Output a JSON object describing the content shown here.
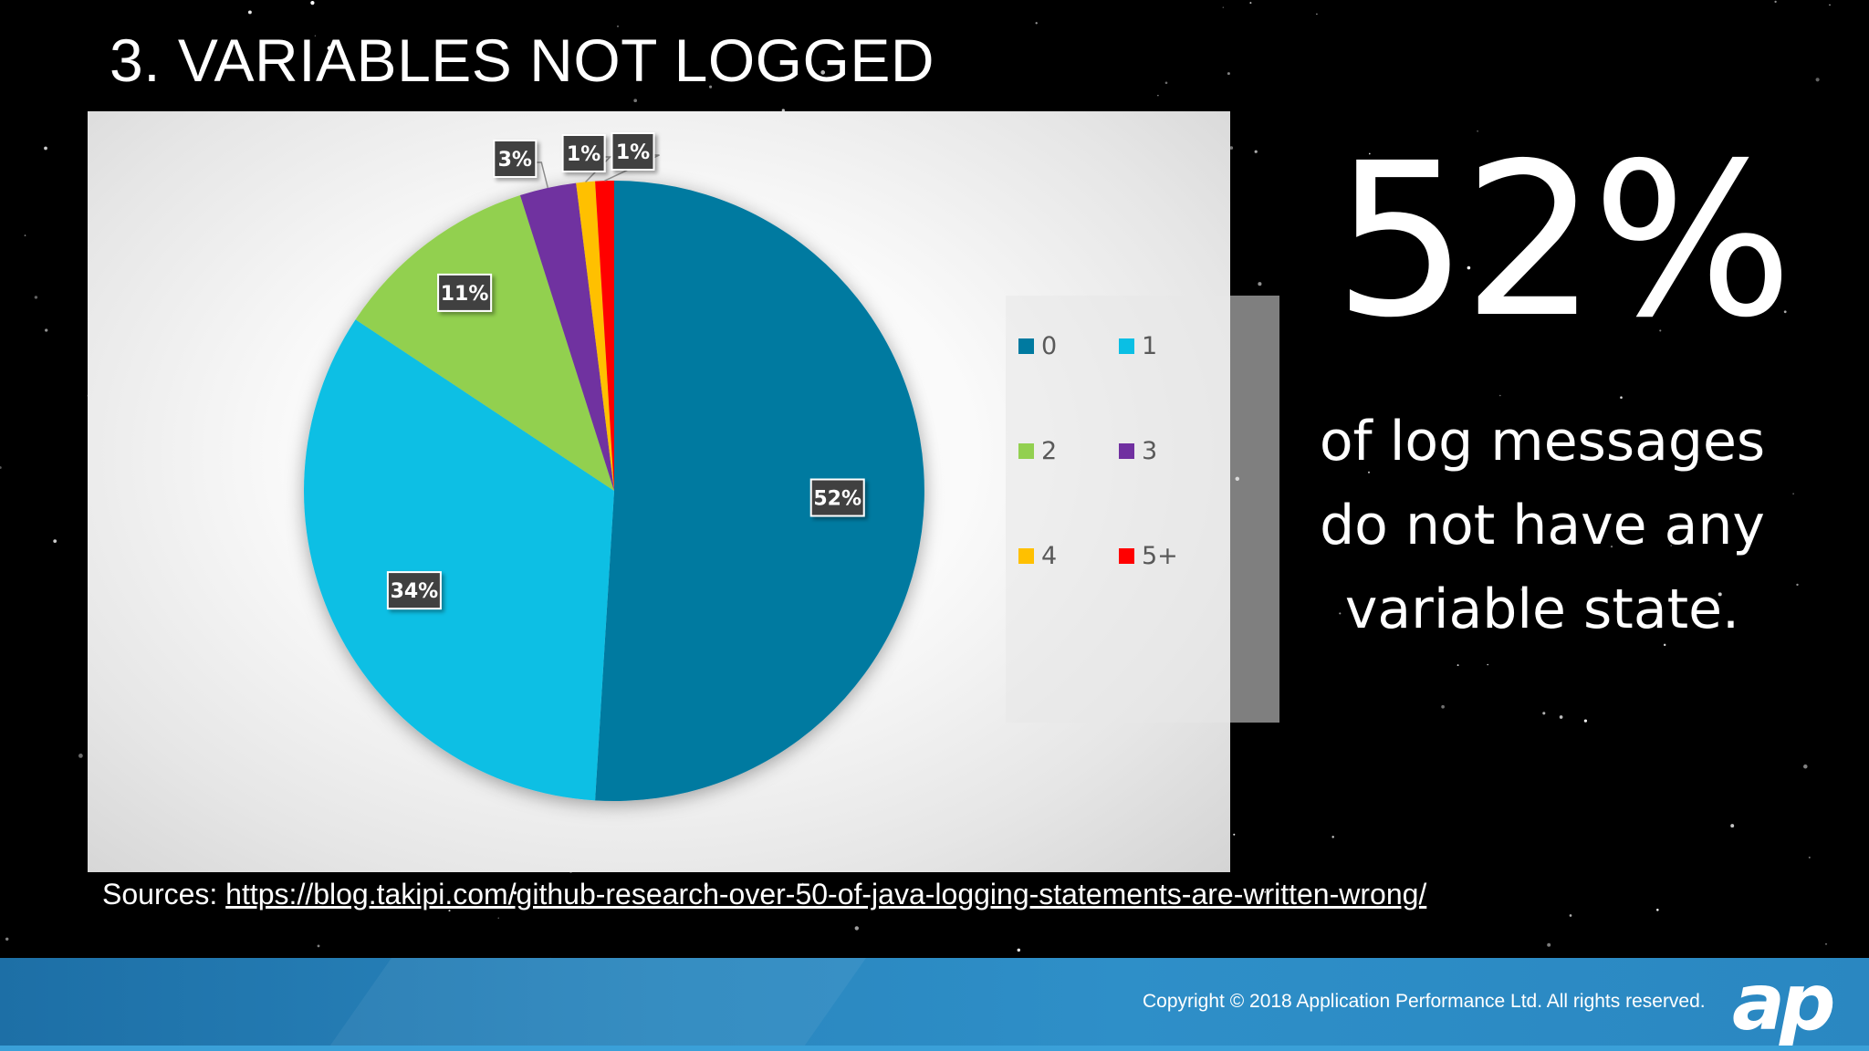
{
  "slide": {
    "title": "3. VARIABLES NOT LOGGED",
    "big_number": "52%",
    "caption_lines": [
      "of log messages",
      "do not have any",
      "variable state."
    ],
    "sources_prefix": "Sources:",
    "sources_link": "https://blog.takipi.com/github-research-over-50-of-java-logging-statements-are-written-wrong/",
    "copyright": "Copyright © 2018 Application Performance Ltd. All rights reserved.",
    "logo": "ap"
  },
  "colors": {
    "background": "#000000",
    "footer": "#2a86be",
    "slice_0": "#007aa0",
    "slice_1": "#0abfe4",
    "slice_2": "#92d050",
    "slice_3": "#7030a0",
    "slice_4": "#ffc000",
    "slice_5plus": "#ff0000",
    "data_label_bg": "#404040"
  },
  "chart_data": {
    "type": "pie",
    "categories": [
      "0",
      "1",
      "2",
      "3",
      "4",
      "5+"
    ],
    "values": [
      52,
      34,
      11,
      3,
      1,
      1
    ],
    "data_labels": [
      "52%",
      "34%",
      "11%",
      "3%",
      "1%",
      "1%"
    ],
    "unit": "%",
    "legend_placement": "right",
    "start": "12 o'clock, clockwise"
  }
}
